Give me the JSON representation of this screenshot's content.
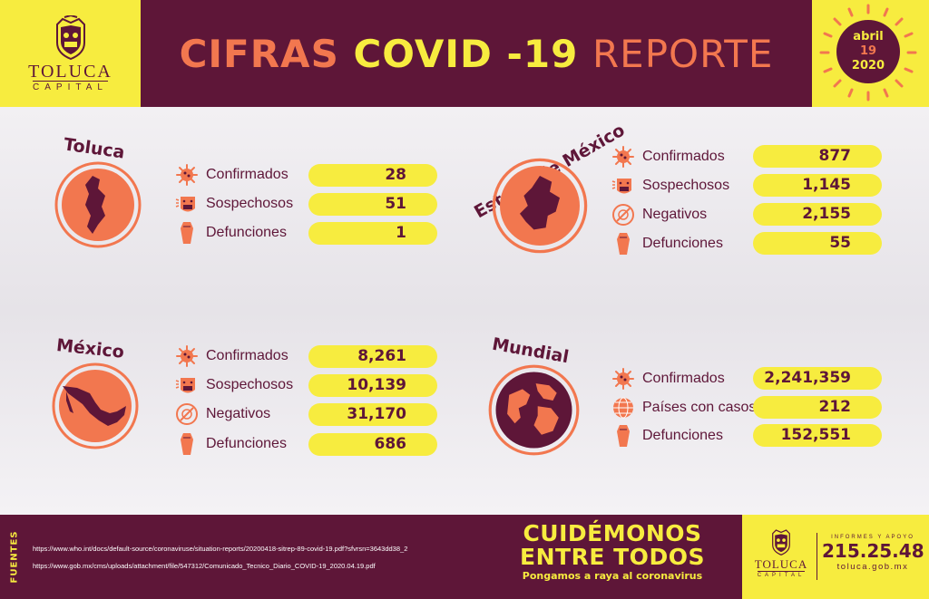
{
  "header": {
    "brand_name": "TOLUCA",
    "brand_sub": "CAPITAL",
    "title_part1": "CIFRAS",
    "title_part2": "COVID -19",
    "title_part3": "REPORTE",
    "date_month": "abril",
    "date_day": "19",
    "date_year": "2020"
  },
  "panels": {
    "toluca": {
      "title": "Toluca",
      "rows": [
        {
          "label": "Confirmados",
          "value": "28",
          "icon": "virus-icon"
        },
        {
          "label": "Sospechosos",
          "value": "51",
          "icon": "suspect-face-icon"
        },
        {
          "label": "Defunciones",
          "value": "1",
          "icon": "coffin-icon"
        }
      ]
    },
    "edomex": {
      "title": "Estado de México",
      "rows": [
        {
          "label": "Confirmados",
          "value": "877",
          "icon": "virus-icon"
        },
        {
          "label": "Sospechosos",
          "value": "1,145",
          "icon": "suspect-face-icon"
        },
        {
          "label": "Negativos",
          "value": "2,155",
          "icon": "no-virus-icon"
        },
        {
          "label": "Defunciones",
          "value": "55",
          "icon": "coffin-icon"
        }
      ]
    },
    "mexico": {
      "title": "México",
      "rows": [
        {
          "label": "Confirmados",
          "value": "8,261",
          "icon": "virus-icon"
        },
        {
          "label": "Sospechosos",
          "value": "10,139",
          "icon": "suspect-face-icon"
        },
        {
          "label": "Negativos",
          "value": "31,170",
          "icon": "no-virus-icon"
        },
        {
          "label": "Defunciones",
          "value": "686",
          "icon": "coffin-icon"
        }
      ]
    },
    "mundial": {
      "title": "Mundial",
      "rows": [
        {
          "label": "Confirmados",
          "value": "2,241,359",
          "icon": "virus-icon"
        },
        {
          "label": "Países con casos",
          "value": "212",
          "icon": "globe-icon"
        },
        {
          "label": "Defunciones",
          "value": "152,551",
          "icon": "coffin-icon"
        }
      ]
    }
  },
  "footer": {
    "fuentes_label": "FUENTES",
    "sources": [
      "https://www.who.int/docs/default-source/coronaviruse/situation-reports/20200418-sitrep-89-covid-19.pdf?sfvrsn=3643dd38_2",
      "https://www.gob.mx/cms/uploads/attachment/file/547312/Comunicado_Tecnico_Diario_COVID-19_2020.04.19.pdf"
    ],
    "slogan_line1": "CUIDÉMONOS",
    "slogan_line2": "ENTRE TODOS",
    "slogan_line3": "Pongamos a raya al coronavirus",
    "info_label": "INFORMES Y APOYO",
    "phone": "215.25.48",
    "website": "toluca.gob.mx",
    "brand_name": "TOLUCA",
    "brand_sub": "CAPITAL"
  },
  "colors": {
    "burgundy": "#5e1638",
    "yellow": "#f7ec3f",
    "orange": "#f2774f"
  }
}
